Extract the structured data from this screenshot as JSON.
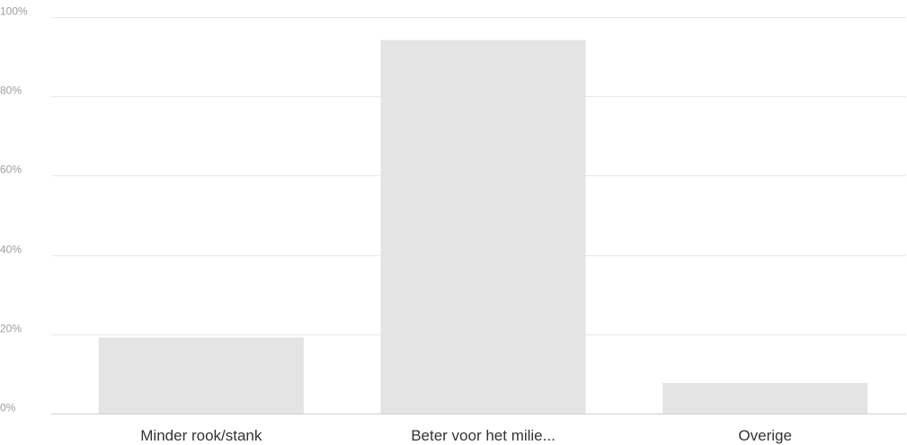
{
  "chart_data": {
    "type": "bar",
    "categories": [
      "Minder rook/stank",
      "Beter voor het milie...",
      "Overige"
    ],
    "values": [
      19.2,
      94.2,
      7.7
    ],
    "unit": "%",
    "ylim": [
      0,
      100
    ],
    "y_ticks": [
      0,
      20,
      40,
      60,
      80,
      100
    ],
    "y_tick_labels": [
      "0%",
      "20%",
      "40%",
      "60%",
      "80%",
      "100%"
    ],
    "title": "",
    "xlabel": "",
    "ylabel": "",
    "grid": true,
    "legend": "none",
    "colors": {
      "bar": "#e4e4e4",
      "grid": "#e8e8e8",
      "axis": "#cfcfcf",
      "tick_text": "#9e9e9e",
      "category_text": "#333333"
    }
  }
}
